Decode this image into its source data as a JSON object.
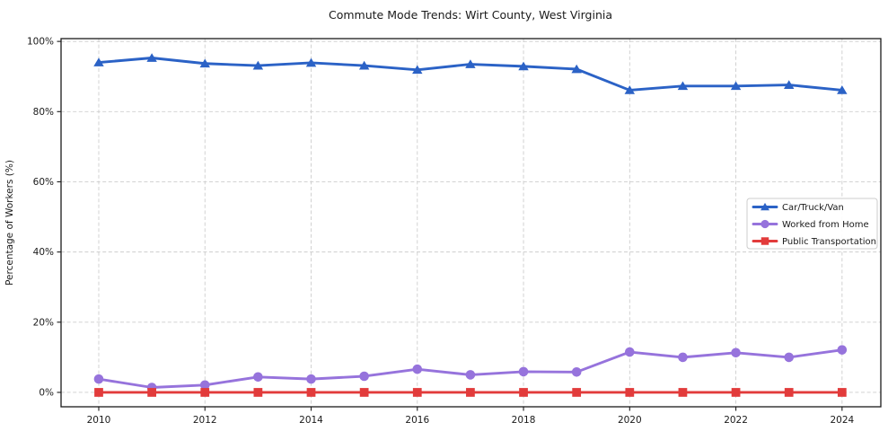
{
  "chart_data": {
    "type": "line",
    "title": "Commute Mode Trends: Wirt County, West Virginia",
    "xlabel": "",
    "ylabel": "Percentage of Workers (%)",
    "x": [
      2010,
      2011,
      2012,
      2013,
      2014,
      2015,
      2016,
      2017,
      2018,
      2019,
      2020,
      2021,
      2022,
      2023,
      2024
    ],
    "series": [
      {
        "name": "Car/Truck/Van",
        "color": "#2b62c6",
        "marker": "triangle-up",
        "values": [
          94.0,
          95.3,
          93.7,
          93.1,
          93.9,
          93.1,
          91.9,
          93.5,
          92.9,
          92.1,
          86.1,
          87.3,
          87.3,
          87.6,
          86.1
        ]
      },
      {
        "name": "Worked from Home",
        "color": "#9673dc",
        "marker": "circle",
        "values": [
          3.8,
          1.4,
          2.1,
          4.4,
          3.8,
          4.6,
          6.6,
          5.0,
          5.9,
          5.8,
          11.5,
          10.0,
          11.3,
          10.0,
          12.1
        ]
      },
      {
        "name": "Public Transportation",
        "color": "#e23b3b",
        "marker": "square",
        "values": [
          0.0,
          0.0,
          0.0,
          0.0,
          0.0,
          0.0,
          0.0,
          0.0,
          0.0,
          0.0,
          0.0,
          0.0,
          0.0,
          0.0,
          0.0
        ]
      }
    ],
    "xticks": [
      2010,
      2012,
      2014,
      2016,
      2018,
      2020,
      2022,
      2024
    ],
    "xtick_labels": [
      "2010",
      "2012",
      "2014",
      "2016",
      "2018",
      "2020",
      "2022",
      "2024"
    ],
    "yticks": [
      0,
      20,
      40,
      60,
      80,
      100
    ],
    "ytick_labels": [
      "0%",
      "20%",
      "40%",
      "60%",
      "80%",
      "100%"
    ],
    "xlim": [
      2009.29,
      2024.73
    ],
    "ylim": [
      -4.1,
      100.8
    ],
    "grid": true,
    "grid_color": "#cdcdcd",
    "frame_color": "#1a1a1a",
    "legend_position": "center right"
  }
}
